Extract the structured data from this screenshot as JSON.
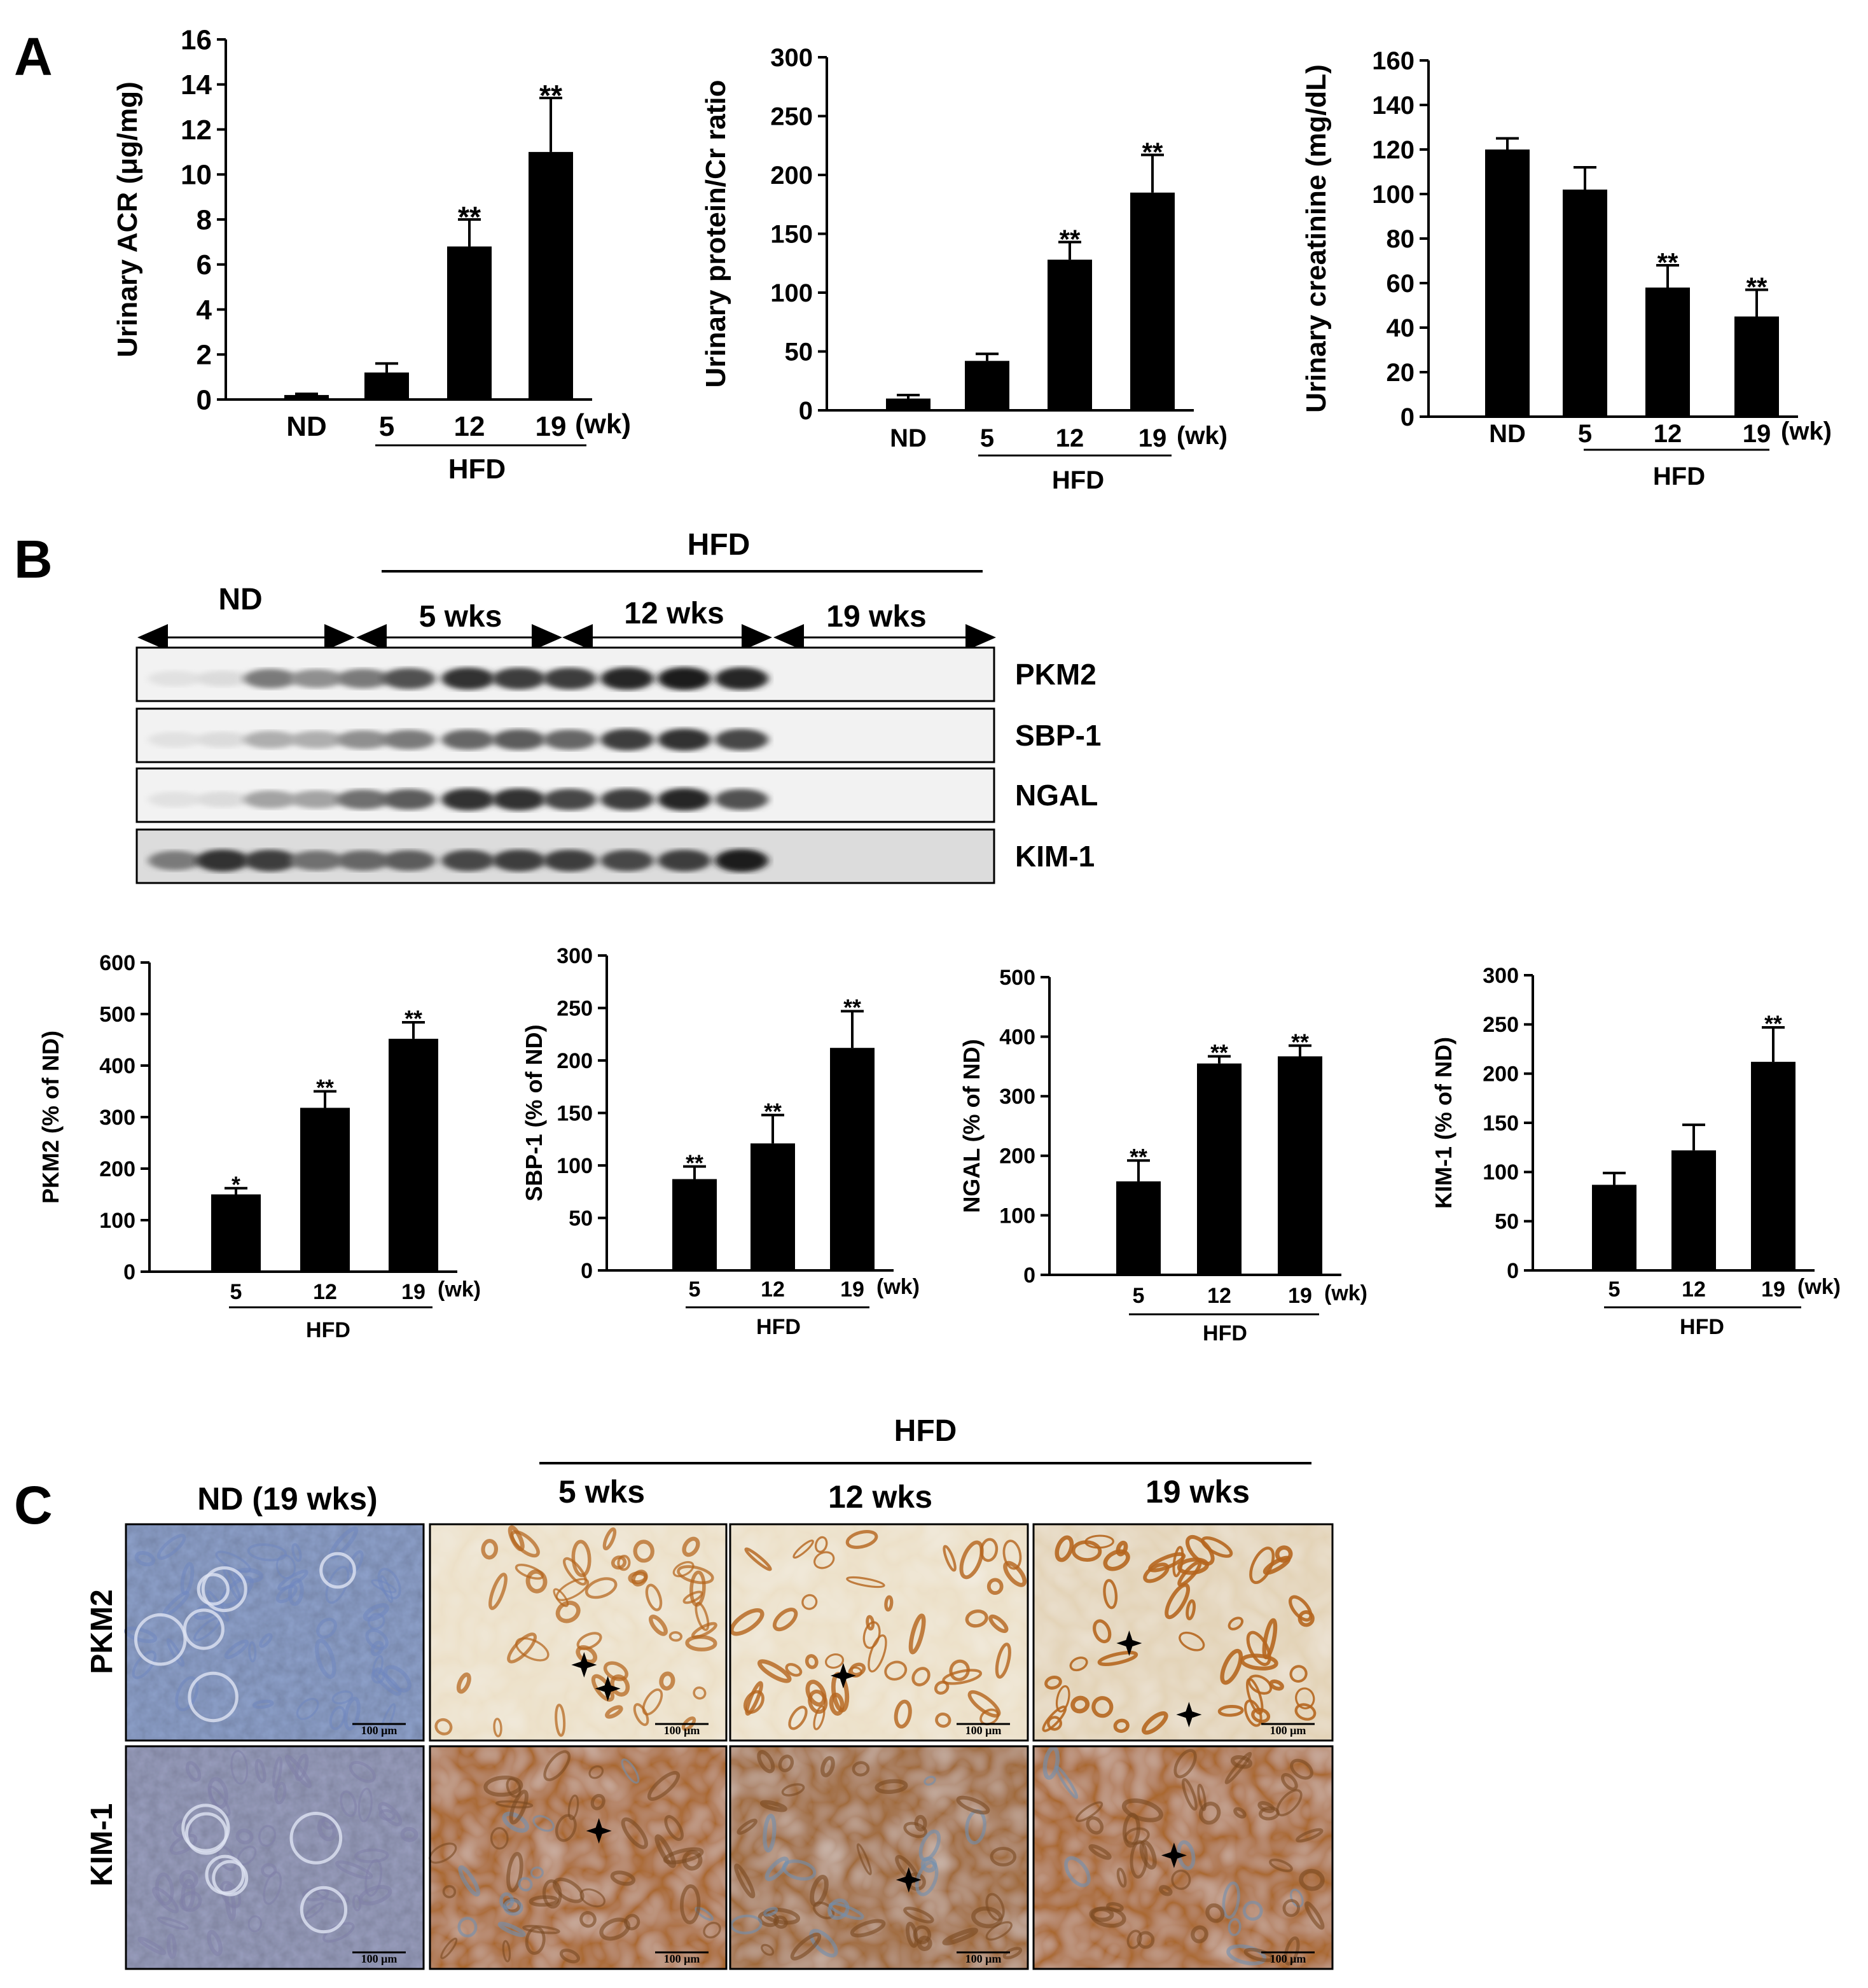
{
  "panels": {
    "a": "A",
    "b": "B",
    "c": "C"
  },
  "colors": {
    "bar": "#000000",
    "nd_tissue": "#8fa2cc",
    "hfd_light": "#e9dcc2",
    "stain": "#b5651d",
    "kim_tissue": "#a9672c"
  },
  "chart_data": [
    {
      "type": "bar",
      "panel": "A",
      "title": "",
      "ylabel": "Urinary ACR (μg/mg)",
      "categories": [
        "ND",
        "5",
        "12",
        "19"
      ],
      "unit_label": "(wk)",
      "group_label": "HFD",
      "values": [
        0.2,
        1.2,
        6.8,
        11.0
      ],
      "errors": [
        0.05,
        0.4,
        1.2,
        2.4
      ],
      "significance": [
        "",
        "",
        "**",
        "**"
      ],
      "ylim": [
        0,
        16
      ],
      "yticks": [
        0,
        2,
        4,
        6,
        8,
        10,
        12,
        14,
        16
      ]
    },
    {
      "type": "bar",
      "panel": "A",
      "title": "",
      "ylabel": "Urinary protein/Cr ratio",
      "categories": [
        "ND",
        "5",
        "12",
        "19"
      ],
      "unit_label": "(wk)",
      "group_label": "HFD",
      "values": [
        10,
        42,
        128,
        185
      ],
      "errors": [
        3,
        6,
        15,
        32
      ],
      "significance": [
        "",
        "",
        "**",
        "**"
      ],
      "ylim": [
        0,
        300
      ],
      "yticks": [
        0,
        50,
        100,
        150,
        200,
        250,
        300
      ]
    },
    {
      "type": "bar",
      "panel": "A",
      "title": "",
      "ylabel": "Urinary creatinine (mg/dL)",
      "categories": [
        "ND",
        "5",
        "12",
        "19"
      ],
      "unit_label": "(wk)",
      "group_label": "HFD",
      "values": [
        120,
        102,
        58,
        45
      ],
      "errors": [
        5,
        10,
        10,
        12
      ],
      "significance": [
        "",
        "",
        "**",
        "**"
      ],
      "ylim": [
        0,
        160
      ],
      "yticks": [
        0,
        20,
        40,
        60,
        80,
        100,
        120,
        140,
        160
      ]
    },
    {
      "type": "bar",
      "panel": "B",
      "title": "",
      "ylabel": "PKM2 (% of ND)",
      "categories": [
        "5",
        "12",
        "19"
      ],
      "unit_label": "(wk)",
      "group_label": "HFD",
      "values": [
        150,
        318,
        452
      ],
      "errors": [
        12,
        32,
        32
      ],
      "significance": [
        "*",
        "**",
        "**"
      ],
      "ylim": [
        0,
        600
      ],
      "yticks": [
        0,
        100,
        200,
        300,
        400,
        500,
        600
      ]
    },
    {
      "type": "bar",
      "panel": "B",
      "title": "",
      "ylabel": "SBP-1 (% of ND)",
      "categories": [
        "5",
        "12",
        "19"
      ],
      "unit_label": "(wk)",
      "group_label": "HFD",
      "values": [
        87,
        121,
        212
      ],
      "errors": [
        12,
        27,
        35
      ],
      "significance": [
        "**",
        "**",
        "**"
      ],
      "ylim": [
        0,
        300
      ],
      "yticks": [
        0,
        50,
        100,
        150,
        200,
        250,
        300
      ]
    },
    {
      "type": "bar",
      "panel": "B",
      "title": "",
      "ylabel": "NGAL (% of ND)",
      "categories": [
        "5",
        "12",
        "19"
      ],
      "unit_label": "(wk)",
      "group_label": "HFD",
      "values": [
        157,
        355,
        367
      ],
      "errors": [
        35,
        12,
        18
      ],
      "significance": [
        "**",
        "**",
        "**"
      ],
      "ylim": [
        0,
        500
      ],
      "yticks": [
        0,
        100,
        200,
        300,
        400,
        500
      ]
    },
    {
      "type": "bar",
      "panel": "B",
      "title": "",
      "ylabel": "KIM-1 (% of ND)",
      "categories": [
        "5",
        "12",
        "19"
      ],
      "unit_label": "(wk)",
      "group_label": "HFD",
      "values": [
        87,
        122,
        212
      ],
      "errors": [
        12,
        26,
        35
      ],
      "significance": [
        "",
        "",
        "**"
      ],
      "ylim": [
        0,
        300
      ],
      "yticks": [
        0,
        50,
        100,
        150,
        200,
        250,
        300
      ]
    }
  ],
  "blot": {
    "hfd_label": "HFD",
    "groups": [
      "ND",
      "5 wks",
      "12 wks",
      "19 wks"
    ],
    "rows": [
      {
        "label": "PKM2",
        "intensity": [
          0.05,
          0.08,
          0.55,
          0.45,
          0.55,
          0.75,
          0.9,
          0.85,
          0.85,
          0.95,
          1.0,
          0.95
        ]
      },
      {
        "label": "SBP-1",
        "intensity": [
          0.05,
          0.08,
          0.3,
          0.3,
          0.45,
          0.55,
          0.65,
          0.7,
          0.65,
          0.85,
          0.9,
          0.8
        ]
      },
      {
        "label": "NGAL",
        "intensity": [
          0.05,
          0.08,
          0.35,
          0.35,
          0.6,
          0.7,
          0.9,
          0.9,
          0.8,
          0.85,
          0.95,
          0.75
        ]
      },
      {
        "label": "KIM-1",
        "intensity": [
          0.55,
          0.9,
          0.85,
          0.6,
          0.65,
          0.7,
          0.8,
          0.85,
          0.85,
          0.8,
          0.85,
          1.0
        ]
      }
    ]
  },
  "histology": {
    "hfd_label": "HFD",
    "columns": [
      "ND (19 wks)",
      "5 wks",
      "12 wks",
      "19 wks"
    ],
    "rows": [
      "PKM2",
      "KIM-1"
    ],
    "scale_bar": "100 μm"
  }
}
